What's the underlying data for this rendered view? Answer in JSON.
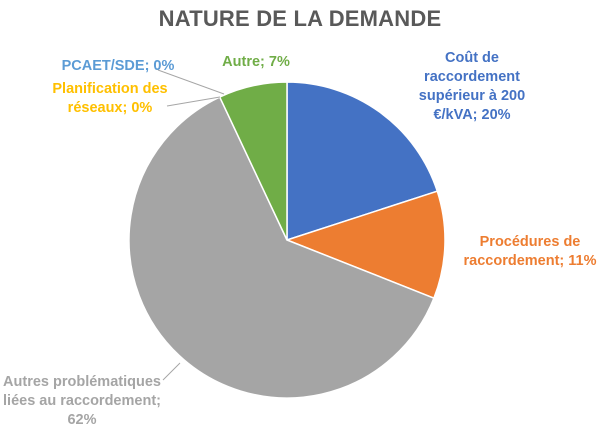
{
  "chart_data": {
    "type": "pie",
    "title": "NATURE DE LA DEMANDE",
    "slices": [
      {
        "name": "Coût de raccordement supérieur à 200 €/kVA",
        "value": 20,
        "color": "#4472c4",
        "label_lines": [
          "Coût de",
          "raccordement",
          "supérieur à 200",
          "€/kVA; 20%"
        ]
      },
      {
        "name": "Procédures de raccordement",
        "value": 11,
        "color": "#ed7d31",
        "label_lines": [
          "Procédures de",
          "raccordement; 11%"
        ]
      },
      {
        "name": "Autres problématiques liées au raccordement",
        "value": 62,
        "color": "#a5a5a5",
        "label_lines": [
          "Autres problématiques",
          "liées au raccordement;",
          "62%"
        ]
      },
      {
        "name": "Planification des réseaux",
        "value": 0,
        "color": "#ffc000",
        "label_lines": [
          "Planification des",
          "réseaux; 0%"
        ]
      },
      {
        "name": "PCAET/SDE",
        "value": 0,
        "color": "#5b9bd5",
        "label_lines": [
          "PCAET/SDE; 0%"
        ]
      },
      {
        "name": "Autre",
        "value": 7,
        "color": "#70ad47",
        "label_lines": [
          "Autre; 7%"
        ]
      }
    ],
    "legend": "none",
    "leader_line_color": "#a6a6a6"
  }
}
